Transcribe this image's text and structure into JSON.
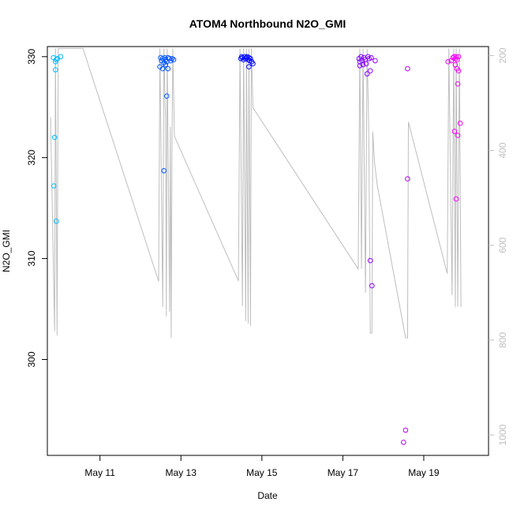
{
  "chart_data": {
    "type": "scatter",
    "title": "ATOM4 Northbound N2O_GMI",
    "xlabel": "Date",
    "ylabel": "N2O_GMI",
    "ylim": [
      290.5,
      331
    ],
    "xlim": [
      9.7,
      20.6
    ],
    "x_ticks": [
      {
        "value": 11,
        "label": "May 11"
      },
      {
        "value": 13,
        "label": "May 13"
      },
      {
        "value": 15,
        "label": "May 15"
      },
      {
        "value": 17,
        "label": "May 17"
      },
      {
        "value": 19,
        "label": "May 19"
      }
    ],
    "y_ticks": [
      {
        "value": 300,
        "label": "300"
      },
      {
        "value": 310,
        "label": "310"
      },
      {
        "value": 320,
        "label": "320"
      },
      {
        "value": 330,
        "label": "330"
      }
    ],
    "y2_axis": {
      "label": "",
      "color": "#bebebe",
      "ylim": [
        1043,
        181
      ],
      "ticks": [
        {
          "value": 200,
          "label": "200"
        },
        {
          "value": 400,
          "label": "400"
        },
        {
          "value": 600,
          "label": "600"
        },
        {
          "value": 800,
          "label": "800"
        },
        {
          "value": 1000,
          "label": "1000"
        }
      ]
    },
    "grid": false,
    "colors": {
      "start": "#00bfff",
      "mid": "#0000ff",
      "end": "#ff00ff",
      "line": "#bebebe"
    },
    "points": [
      {
        "x": 9.85,
        "y": 329.9
      },
      {
        "x": 9.9,
        "y": 329.5
      },
      {
        "x": 9.92,
        "y": 329.7
      },
      {
        "x": 9.95,
        "y": 329.8
      },
      {
        "x": 9.9,
        "y": 328.7
      },
      {
        "x": 9.88,
        "y": 322.0
      },
      {
        "x": 9.86,
        "y": 317.2
      },
      {
        "x": 9.92,
        "y": 313.7
      },
      {
        "x": 10.03,
        "y": 330.0
      },
      {
        "x": 12.5,
        "y": 329.9
      },
      {
        "x": 12.52,
        "y": 329.6
      },
      {
        "x": 12.55,
        "y": 329.8
      },
      {
        "x": 12.58,
        "y": 329.4
      },
      {
        "x": 12.6,
        "y": 329.9
      },
      {
        "x": 12.62,
        "y": 329.7
      },
      {
        "x": 12.65,
        "y": 329.5
      },
      {
        "x": 12.68,
        "y": 329.9
      },
      {
        "x": 12.72,
        "y": 329.8
      },
      {
        "x": 12.75,
        "y": 329.6
      },
      {
        "x": 12.78,
        "y": 329.8
      },
      {
        "x": 12.82,
        "y": 329.7
      },
      {
        "x": 12.48,
        "y": 329.0
      },
      {
        "x": 12.55,
        "y": 328.8
      },
      {
        "x": 12.62,
        "y": 329.2
      },
      {
        "x": 12.68,
        "y": 328.8
      },
      {
        "x": 12.65,
        "y": 326.1
      },
      {
        "x": 12.58,
        "y": 318.7
      },
      {
        "x": 14.48,
        "y": 329.8
      },
      {
        "x": 14.5,
        "y": 330.0
      },
      {
        "x": 14.52,
        "y": 329.9
      },
      {
        "x": 14.55,
        "y": 329.7
      },
      {
        "x": 14.58,
        "y": 330.0
      },
      {
        "x": 14.6,
        "y": 329.8
      },
      {
        "x": 14.62,
        "y": 329.9
      },
      {
        "x": 14.64,
        "y": 330.0
      },
      {
        "x": 14.66,
        "y": 329.7
      },
      {
        "x": 14.68,
        "y": 329.9
      },
      {
        "x": 14.7,
        "y": 329.6
      },
      {
        "x": 14.72,
        "y": 329.8
      },
      {
        "x": 14.75,
        "y": 329.5
      },
      {
        "x": 14.78,
        "y": 329.3
      },
      {
        "x": 14.68,
        "y": 329.0
      },
      {
        "x": 17.4,
        "y": 329.8
      },
      {
        "x": 17.42,
        "y": 329.5
      },
      {
        "x": 17.45,
        "y": 330.0
      },
      {
        "x": 17.48,
        "y": 329.6
      },
      {
        "x": 17.5,
        "y": 329.2
      },
      {
        "x": 17.52,
        "y": 329.9
      },
      {
        "x": 17.55,
        "y": 329.7
      },
      {
        "x": 17.58,
        "y": 329.3
      },
      {
        "x": 17.62,
        "y": 330.0
      },
      {
        "x": 17.65,
        "y": 329.8
      },
      {
        "x": 17.7,
        "y": 329.9
      },
      {
        "x": 17.8,
        "y": 329.6
      },
      {
        "x": 17.42,
        "y": 329.1
      },
      {
        "x": 17.6,
        "y": 328.3
      },
      {
        "x": 17.68,
        "y": 328.6
      },
      {
        "x": 17.68,
        "y": 309.8
      },
      {
        "x": 17.72,
        "y": 307.3
      },
      {
        "x": 18.5,
        "y": 291.8
      },
      {
        "x": 18.55,
        "y": 293.0
      },
      {
        "x": 18.6,
        "y": 328.8
      },
      {
        "x": 18.6,
        "y": 317.9
      },
      {
        "x": 19.6,
        "y": 329.5
      },
      {
        "x": 19.68,
        "y": 329.6
      },
      {
        "x": 19.72,
        "y": 329.9
      },
      {
        "x": 19.75,
        "y": 330.0
      },
      {
        "x": 19.78,
        "y": 329.8
      },
      {
        "x": 19.8,
        "y": 330.0
      },
      {
        "x": 19.82,
        "y": 329.7
      },
      {
        "x": 19.86,
        "y": 330.0
      },
      {
        "x": 19.78,
        "y": 329.2
      },
      {
        "x": 19.82,
        "y": 328.8
      },
      {
        "x": 19.86,
        "y": 328.6
      },
      {
        "x": 19.84,
        "y": 327.3
      },
      {
        "x": 19.9,
        "y": 323.4
      },
      {
        "x": 19.76,
        "y": 322.6
      },
      {
        "x": 19.84,
        "y": 322.2
      },
      {
        "x": 19.8,
        "y": 315.9
      }
    ],
    "line_series": [
      {
        "x": 9.78,
        "y": 330
      },
      {
        "x": 9.88,
        "y": 781
      },
      {
        "x": 9.9,
        "y": 185
      },
      {
        "x": 9.94,
        "y": 790
      },
      {
        "x": 9.97,
        "y": 185
      },
      {
        "x": 10.05,
        "y": 185
      },
      {
        "x": 10.58,
        "y": 185
      },
      {
        "x": 12.45,
        "y": 676
      },
      {
        "x": 12.48,
        "y": 185
      },
      {
        "x": 12.55,
        "y": 730
      },
      {
        "x": 12.58,
        "y": 185
      },
      {
        "x": 12.62,
        "y": 340
      },
      {
        "x": 12.64,
        "y": 750
      },
      {
        "x": 12.66,
        "y": 185
      },
      {
        "x": 12.72,
        "y": 740
      },
      {
        "x": 12.74,
        "y": 350
      },
      {
        "x": 12.76,
        "y": 795
      },
      {
        "x": 12.78,
        "y": 380
      },
      {
        "x": 12.8,
        "y": 185
      },
      {
        "x": 12.84,
        "y": 370
      },
      {
        "x": 14.42,
        "y": 675
      },
      {
        "x": 14.46,
        "y": 185
      },
      {
        "x": 14.52,
        "y": 728
      },
      {
        "x": 14.55,
        "y": 185
      },
      {
        "x": 14.6,
        "y": 760
      },
      {
        "x": 14.62,
        "y": 185
      },
      {
        "x": 14.66,
        "y": 765
      },
      {
        "x": 14.68,
        "y": 185
      },
      {
        "x": 14.72,
        "y": 770
      },
      {
        "x": 14.74,
        "y": 185
      },
      {
        "x": 14.78,
        "y": 310
      },
      {
        "x": 17.38,
        "y": 650
      },
      {
        "x": 17.42,
        "y": 185
      },
      {
        "x": 17.46,
        "y": 650
      },
      {
        "x": 17.5,
        "y": 185
      },
      {
        "x": 17.56,
        "y": 700
      },
      {
        "x": 17.6,
        "y": 185
      },
      {
        "x": 17.64,
        "y": 350
      },
      {
        "x": 17.68,
        "y": 785
      },
      {
        "x": 17.72,
        "y": 785
      },
      {
        "x": 17.74,
        "y": 360
      },
      {
        "x": 17.78,
        "y": 423
      },
      {
        "x": 17.85,
        "y": 473
      },
      {
        "x": 18.55,
        "y": 795
      },
      {
        "x": 18.6,
        "y": 795
      },
      {
        "x": 18.62,
        "y": 340
      },
      {
        "x": 19.58,
        "y": 660
      },
      {
        "x": 19.62,
        "y": 185
      },
      {
        "x": 19.7,
        "y": 705
      },
      {
        "x": 19.74,
        "y": 185
      },
      {
        "x": 19.78,
        "y": 730
      },
      {
        "x": 19.8,
        "y": 185
      },
      {
        "x": 19.84,
        "y": 730
      },
      {
        "x": 19.88,
        "y": 185
      },
      {
        "x": 19.92,
        "y": 730
      }
    ]
  }
}
